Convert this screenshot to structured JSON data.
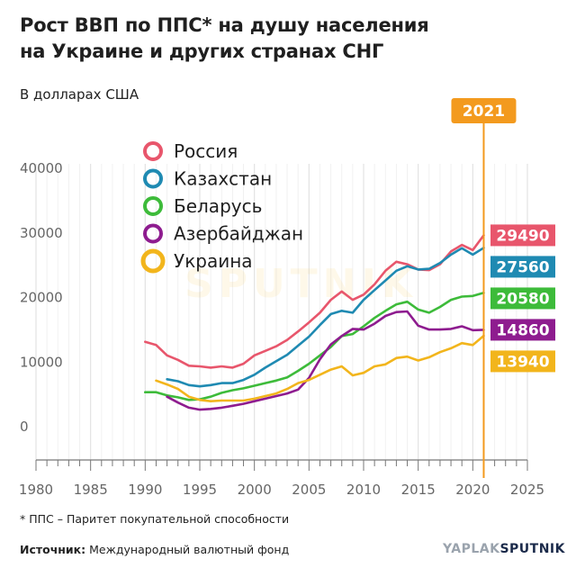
{
  "header": {
    "title_line1": "Рост ВВП по ППС* на душу населения",
    "title_line2": "на Украине и других странах СНГ",
    "subtitle": "В долларах США"
  },
  "footer": {
    "footnote": "* ППС – Паритет покупательной способности",
    "source_label": "Источник:",
    "source_text": " Международный валютный фонд",
    "brand_left": "YAPLAK",
    "brand_right": "SPUTNIK"
  },
  "watermark": "SPUTNIK",
  "chart_data": {
    "type": "line",
    "title": "Рост ВВП по ППС* на душу населения на Украине и других странах СНГ",
    "ylabel": "В долларах США",
    "xlim": [
      1980,
      2025
    ],
    "ylim": [
      0,
      40000
    ],
    "x_ticks": [
      1980,
      1985,
      1990,
      1995,
      2000,
      2005,
      2010,
      2015,
      2020,
      2025
    ],
    "y_ticks": [
      0,
      10000,
      20000,
      30000,
      40000
    ],
    "highlight_year": 2021,
    "highlight_label": "2021",
    "legend_position": "top-left",
    "grid": true,
    "series": [
      {
        "name": "Россия",
        "color": "#e8566c",
        "end_label": "29490",
        "x": [
          1990,
          1991,
          1992,
          1993,
          1994,
          1995,
          1996,
          1997,
          1998,
          1999,
          2000,
          2001,
          2002,
          2003,
          2004,
          2005,
          2006,
          2007,
          2008,
          2009,
          2010,
          2011,
          2012,
          2013,
          2014,
          2015,
          2016,
          2017,
          2018,
          2019,
          2020,
          2021
        ],
        "values": [
          13000,
          12500,
          10900,
          10200,
          9300,
          9200,
          9000,
          9200,
          9000,
          9600,
          10900,
          11600,
          12300,
          13300,
          14600,
          16000,
          17500,
          19500,
          20800,
          19500,
          20300,
          21900,
          24000,
          25400,
          25000,
          24200,
          24100,
          25000,
          27000,
          28000,
          27200,
          29490
        ]
      },
      {
        "name": "Казахстан",
        "color": "#1f8ab2",
        "end_label": "27560",
        "x": [
          1992,
          1993,
          1994,
          1995,
          1996,
          1997,
          1998,
          1999,
          2000,
          2001,
          2002,
          2003,
          2004,
          2005,
          2006,
          2007,
          2008,
          2009,
          2010,
          2011,
          2012,
          2013,
          2014,
          2015,
          2016,
          2017,
          2018,
          2019,
          2020,
          2021
        ],
        "values": [
          7200,
          6900,
          6300,
          6100,
          6300,
          6600,
          6600,
          7100,
          7900,
          9000,
          10000,
          11000,
          12400,
          13800,
          15600,
          17300,
          17800,
          17500,
          19500,
          21000,
          22500,
          24000,
          24700,
          24200,
          24300,
          25200,
          26500,
          27500,
          26500,
          27560
        ]
      },
      {
        "name": "Беларусь",
        "color": "#3dbb3a",
        "end_label": "20580",
        "x": [
          1990,
          1991,
          1992,
          1993,
          1994,
          1995,
          1996,
          1997,
          1998,
          1999,
          2000,
          2001,
          2002,
          2003,
          2004,
          2005,
          2006,
          2007,
          2008,
          2009,
          2010,
          2011,
          2012,
          2013,
          2014,
          2015,
          2016,
          2017,
          2018,
          2019,
          2020,
          2021
        ],
        "values": [
          5200,
          5200,
          4700,
          4400,
          4000,
          4100,
          4500,
          5100,
          5500,
          5800,
          6200,
          6600,
          7000,
          7500,
          8500,
          9600,
          10900,
          12200,
          13900,
          14200,
          15400,
          16700,
          17800,
          18800,
          19200,
          18000,
          17500,
          18400,
          19500,
          20000,
          20100,
          20580
        ]
      },
      {
        "name": "Азербайджан",
        "color": "#8e1c8f",
        "end_label": "14860",
        "x": [
          1992,
          1993,
          1994,
          1995,
          1996,
          1997,
          1998,
          1999,
          2000,
          2001,
          2002,
          2003,
          2004,
          2005,
          2006,
          2007,
          2008,
          2009,
          2010,
          2011,
          2012,
          2013,
          2014,
          2015,
          2016,
          2017,
          2018,
          2019,
          2020,
          2021
        ],
        "values": [
          4500,
          3600,
          2800,
          2500,
          2600,
          2800,
          3100,
          3400,
          3800,
          4200,
          4600,
          5000,
          5600,
          7400,
          10300,
          12600,
          13900,
          15000,
          14900,
          15800,
          17000,
          17600,
          17700,
          15500,
          14900,
          14900,
          15000,
          15400,
          14800,
          14860
        ]
      },
      {
        "name": "Украина",
        "color": "#f2b51c",
        "end_label": "13940",
        "x": [
          1991,
          1992,
          1993,
          1994,
          1995,
          1996,
          1997,
          1998,
          1999,
          2000,
          2001,
          2002,
          2003,
          2004,
          2005,
          2006,
          2007,
          2008,
          2009,
          2010,
          2011,
          2012,
          2013,
          2014,
          2015,
          2016,
          2017,
          2018,
          2019,
          2020,
          2021
        ],
        "values": [
          7000,
          6400,
          5700,
          4500,
          4000,
          3800,
          3900,
          3900,
          3900,
          4200,
          4600,
          5000,
          5700,
          6600,
          7100,
          7900,
          8700,
          9200,
          7800,
          8200,
          9200,
          9500,
          10500,
          10700,
          10100,
          10600,
          11400,
          12000,
          12800,
          12500,
          13940
        ]
      }
    ]
  }
}
